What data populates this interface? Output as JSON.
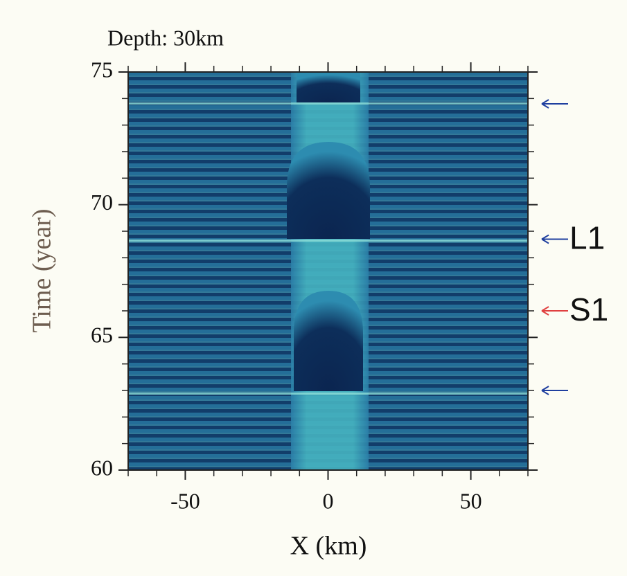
{
  "chart_data": {
    "type": "heatmap",
    "title": "Depth: 30km",
    "x_label": "X (km)",
    "y_label": "Time (year)",
    "xlim": [
      -70,
      70
    ],
    "ylim": [
      60,
      75
    ],
    "xticks": [
      -50,
      0,
      50
    ],
    "yticks": [
      60,
      65,
      70,
      75
    ],
    "xminorticks": [
      -70,
      -60,
      -40,
      -30,
      -20,
      -10,
      10,
      20,
      30,
      40,
      60,
      70
    ],
    "yminorticks": [
      61,
      62,
      63,
      64,
      66,
      67,
      68,
      69,
      71,
      72,
      73,
      74
    ],
    "annotations": [
      {
        "y": 73.8,
        "color": "#1f3f9f"
      },
      {
        "y": 68.7,
        "color": "#1f3f9f",
        "label": "L1"
      },
      {
        "y": 66,
        "color": "#e04040",
        "label": "S1"
      },
      {
        "y": 63,
        "color": "#1f3f9f"
      }
    ]
  }
}
